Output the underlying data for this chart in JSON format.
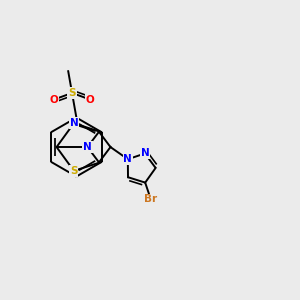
{
  "background_color": "#EBEBEB",
  "bond_color": "#000000",
  "atom_colors": {
    "N": "#0000FF",
    "S_hetero": "#CCAA00",
    "S_sulfonyl": "#CCAA00",
    "O": "#FF0000",
    "Br": "#CC7722",
    "C": "#000000"
  },
  "figsize": [
    3.0,
    3.0
  ],
  "dpi": 100,
  "lw": 1.4,
  "fontsize": 7.5
}
